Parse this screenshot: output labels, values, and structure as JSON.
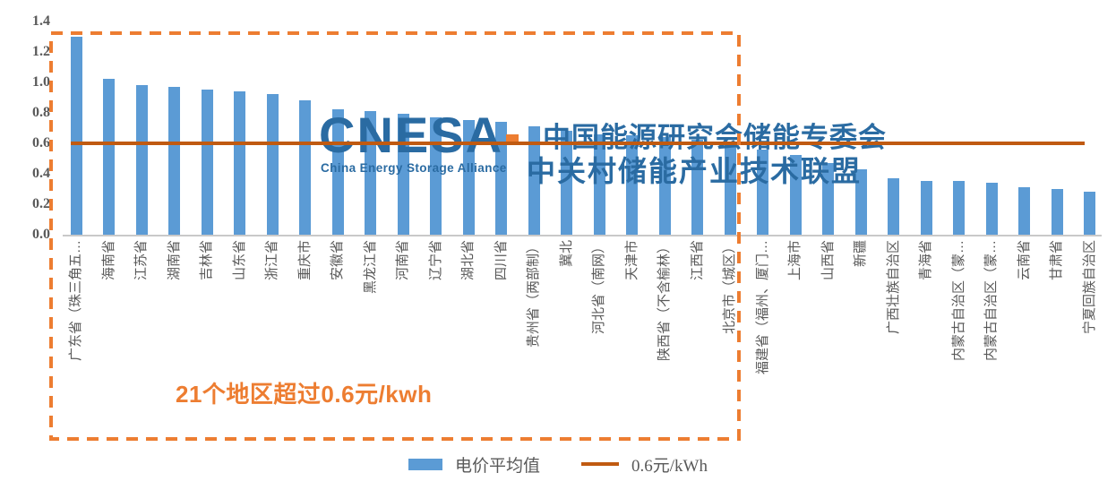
{
  "chart_data": {
    "type": "bar",
    "series_name": "电价平均值",
    "categories": [
      "广东省（珠三角五…",
      "海南省",
      "江苏省",
      "湖南省",
      "吉林省",
      "山东省",
      "浙江省",
      "重庆市",
      "安徽省",
      "黑龙江省",
      "河南省",
      "辽宁省",
      "湖北省",
      "四川省",
      "贵州省（两部制）",
      "冀北",
      "河北省（南网）",
      "天津市",
      "陕西省（不含榆林）",
      "江西省",
      "北京市（城区）",
      "福建省（福州、厦门…",
      "上海市",
      "山西省",
      "新疆",
      "广西壮族自治区",
      "青海省",
      "内蒙古自治区（蒙…",
      "内蒙古自治区（蒙…",
      "云南省",
      "甘肃省",
      "宁夏回族自治区"
    ],
    "values": [
      1.3,
      1.02,
      0.98,
      0.97,
      0.95,
      0.94,
      0.92,
      0.88,
      0.82,
      0.81,
      0.79,
      0.77,
      0.75,
      0.74,
      0.71,
      0.68,
      0.66,
      0.65,
      0.64,
      0.62,
      0.61,
      0.56,
      0.52,
      0.47,
      0.43,
      0.37,
      0.35,
      0.35,
      0.34,
      0.31,
      0.3,
      0.28
    ],
    "ylim": [
      0,
      1.4
    ],
    "yticks": [
      "1.4",
      "1.2",
      "1.0",
      "0.8",
      "0.6",
      "0.4",
      "0.2",
      "0.0"
    ],
    "grid": false,
    "reference_line": {
      "value": 0.6,
      "label": "0.6元/kWh"
    },
    "highlight_box_regions": 21,
    "annotation": "21个地区超过0.6元/kwh",
    "legend": [
      "电价平均值",
      "0.6元/kWh"
    ],
    "legend_position": "bottom-center",
    "unit": "元/kWh"
  },
  "watermark": {
    "logo": "CNESA",
    "subtitle": "China Energy Storage Alliance",
    "line1": "中国能源研究会储能专委会",
    "line2": "中关村储能产业技术联盟"
  },
  "colors": {
    "bar": "#5B9BD5",
    "reference_line": "#C05A11",
    "highlight_box": "#ED7D31",
    "annotation": "#ED7D31",
    "axis_text": "#595959",
    "watermark_blue": "#2A6BA2",
    "watermark_mark": "#ED7D31"
  }
}
